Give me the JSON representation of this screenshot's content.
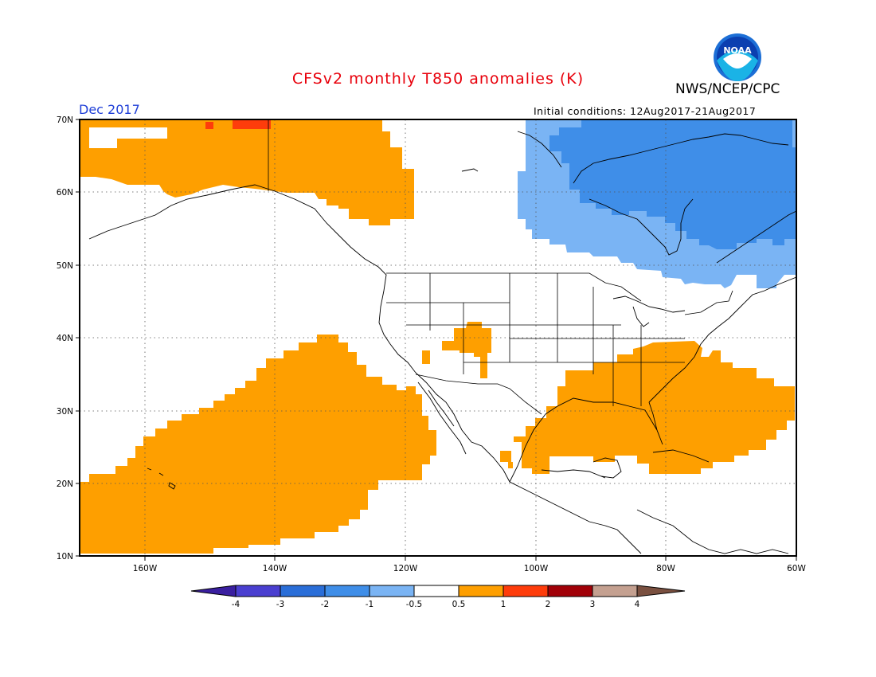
{
  "header": {
    "title": "CFSv2 monthly T850 anomalies (K)",
    "agency": "NWS/NCEP/CPC",
    "period": "Dec 2017",
    "initial_conditions": "Initial conditions: 12Aug2017-21Aug2017",
    "logo_text": "NOAA"
  },
  "map": {
    "projection": "lat-lon",
    "lon_range": [
      -170,
      -60
    ],
    "lat_range": [
      10,
      70
    ],
    "lat_ticks": [
      "70N",
      "60N",
      "50N",
      "40N",
      "30N",
      "20N",
      "10N"
    ],
    "lon_ticks": [
      "160W",
      "140W",
      "120W",
      "100W",
      "80W",
      "60W"
    ],
    "gridlines": "dotted",
    "anomaly_regions": [
      {
        "name": "alaska-warm",
        "category": "0.5 to 1"
      },
      {
        "name": "north-pacific-warm",
        "category": "0.5 to 1"
      },
      {
        "name": "southeast-us-warm",
        "category": "0.5 to 1"
      },
      {
        "name": "four-corners-warm",
        "category": "0.5 to 1"
      },
      {
        "name": "eastern-canada-cool",
        "category": "-1 to -0.5"
      },
      {
        "name": "hudson-bay-cool",
        "category": "-2 to -1"
      },
      {
        "name": "north-alaska-warmer",
        "category": "1 to 2"
      }
    ]
  },
  "colorbar": {
    "labels": [
      "-4",
      "-3",
      "-2",
      "-1",
      "-0.5",
      "0.5",
      "1",
      "2",
      "3",
      "4"
    ],
    "colors": [
      "#3a1fa0",
      "#4a3fd0",
      "#2a6ed8",
      "#3f8ee8",
      "#7ab4f4",
      "#ffffff",
      "#fe9f00",
      "#fe3c0b",
      "#a10008",
      "#c4a090",
      "#7a5040"
    ]
  }
}
